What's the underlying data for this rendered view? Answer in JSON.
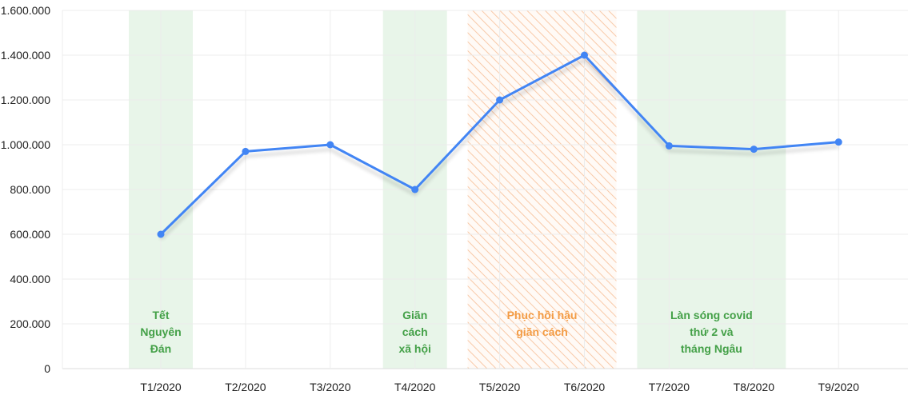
{
  "chart_data": {
    "type": "line",
    "categories": [
      "T1/2020",
      "T2/2020",
      "T3/2020",
      "T4/2020",
      "T5/2020",
      "T6/2020",
      "T7/2020",
      "T8/2020",
      "T9/2020"
    ],
    "series": [
      {
        "values": [
          600000,
          970000,
          1000000,
          800000,
          1200000,
          1400000,
          995000,
          980000,
          1012000
        ]
      }
    ],
    "ylim": [
      0,
      1600000
    ],
    "yticks": [
      "0",
      "200.000",
      "400.000",
      "600.000",
      "800.000",
      "1.000.000",
      "1.200.000",
      "1.400.000",
      "1.600.000"
    ],
    "grid": true,
    "colors": {
      "line": "#4285f4",
      "band_green": "#e8f5e9",
      "band_green_text": "#43a047",
      "band_orange_text": "#f39c45",
      "band_orange_hatch": "#f8c9a8"
    },
    "bands": [
      {
        "from": 0,
        "to": 0,
        "style": "green",
        "label": [
          "Tết",
          "Nguyên",
          "Đán"
        ]
      },
      {
        "from": 3,
        "to": 3,
        "style": "green",
        "label": [
          "Giãn",
          "cách",
          "xã hội"
        ]
      },
      {
        "from": 4,
        "to": 5,
        "style": "hatch-orange",
        "label": [
          "Phục hồi hậu",
          "giãn cách"
        ]
      },
      {
        "from": 6,
        "to": 7,
        "style": "green",
        "label": [
          "Làn sóng covid",
          "thứ 2 và",
          "tháng Ngâu"
        ]
      }
    ]
  }
}
